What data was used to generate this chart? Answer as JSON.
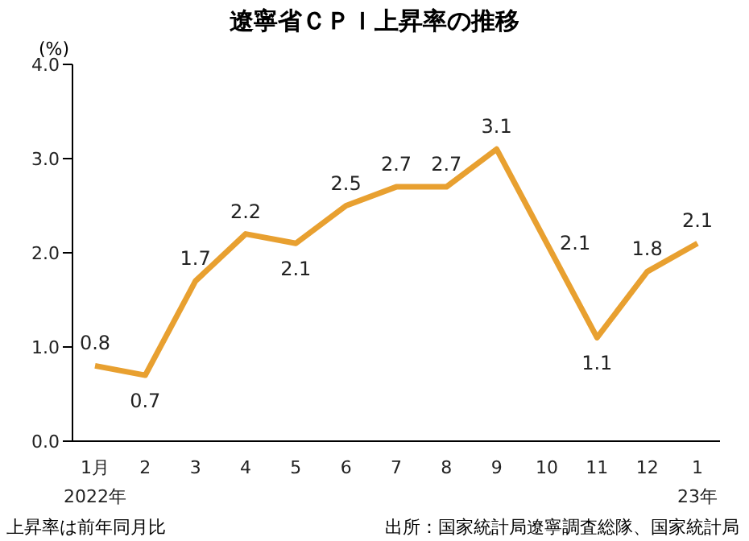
{
  "chart_data": {
    "type": "line",
    "title": "遼寧省ＣＰＩ上昇率の推移",
    "ylabel": "(%)",
    "categories": [
      "1月\n2022年",
      "2",
      "3",
      "4",
      "5",
      "6",
      "7",
      "8",
      "9",
      "10",
      "11",
      "12",
      "1\n23年"
    ],
    "series": [
      {
        "color": "#e8a030",
        "values": [
          0.8,
          0.7,
          1.7,
          2.2,
          2.1,
          2.5,
          2.7,
          2.7,
          3.1,
          2.1,
          1.1,
          1.8,
          2.1
        ]
      }
    ],
    "ylim": [
      0,
      4
    ],
    "yticks": [
      {
        "value": 0,
        "label": "0.0"
      },
      {
        "value": 1,
        "label": "1.0"
      },
      {
        "value": 2,
        "label": "2.0"
      },
      {
        "value": 3,
        "label": "3.0"
      },
      {
        "value": 4,
        "label": "4.0"
      }
    ],
    "data_labels": true,
    "grid": false,
    "legend": false,
    "annotations": [
      "上昇率は前年同月比",
      "出所：国家統計局遼寧調査総隊、国家統計局"
    ]
  }
}
